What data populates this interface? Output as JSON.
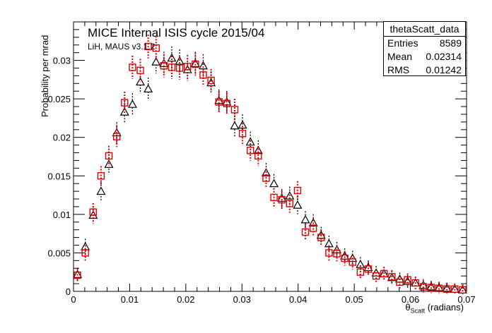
{
  "chart_data": {
    "type": "scatter",
    "title": "MICE Internal ISIS cycle 2015/04",
    "subtitle": "LiH, MAUS v3.1.2",
    "xlabel_base": "θ",
    "xlabel_sub": "Scatt",
    "xlabel_unit": " (radians)",
    "ylabel": "Probability per mrad",
    "xlim": [
      0,
      0.07
    ],
    "ylim": [
      0,
      0.035
    ],
    "xticks": [
      "0",
      "0.01",
      "0.02",
      "0.03",
      "0.04",
      "0.05",
      "0.06",
      "0.07"
    ],
    "yticks": [
      "0",
      "0.005",
      "0.01",
      "0.015",
      "0.02",
      "0.025",
      "0.03"
    ],
    "stats": {
      "title": "thetaScatt_data",
      "rows": [
        {
          "label": "Entries",
          "value": "8589"
        },
        {
          "label": "Mean",
          "value": "0.02314"
        },
        {
          "label": "RMS",
          "value": "0.01242"
        }
      ]
    },
    "series": [
      {
        "marker": "open-triangle",
        "color": "#000000",
        "x": [
          0.0007,
          0.0021,
          0.0035,
          0.0049,
          0.0063,
          0.0077,
          0.0091,
          0.0105,
          0.0119,
          0.0133,
          0.0147,
          0.0161,
          0.0175,
          0.0189,
          0.0203,
          0.0217,
          0.0231,
          0.0245,
          0.0259,
          0.0273,
          0.0287,
          0.0301,
          0.0315,
          0.0329,
          0.0343,
          0.0357,
          0.0371,
          0.0385,
          0.0399,
          0.0413,
          0.0427,
          0.0441,
          0.0455,
          0.0469,
          0.0483,
          0.0497,
          0.0511,
          0.0525,
          0.0539,
          0.0553,
          0.0567,
          0.0581,
          0.0595,
          0.0609,
          0.0623,
          0.0637,
          0.0651,
          0.0665,
          0.0679,
          0.0693
        ],
        "y": [
          0.0022,
          0.0058,
          0.0099,
          0.013,
          0.0165,
          0.0206,
          0.0233,
          0.0243,
          0.0272,
          0.0263,
          0.0298,
          0.0296,
          0.0303,
          0.0299,
          0.0288,
          0.0296,
          0.0293,
          0.0271,
          0.0248,
          0.0246,
          0.0215,
          0.0216,
          0.0194,
          0.0183,
          0.0154,
          0.014,
          0.0121,
          0.0124,
          0.0112,
          0.0093,
          0.0089,
          0.0073,
          0.0062,
          0.0054,
          0.0046,
          0.0043,
          0.0035,
          0.0031,
          0.0024,
          0.0023,
          0.0018,
          0.0016,
          0.0013,
          0.0011,
          0.0008,
          0.0006,
          0.0005,
          0.0004,
          0.0003,
          0.0002
        ]
      },
      {
        "marker": "open-square",
        "color": "#dd0000",
        "x": [
          0.0007,
          0.0021,
          0.0035,
          0.0049,
          0.0063,
          0.0077,
          0.0091,
          0.0105,
          0.0119,
          0.0133,
          0.0147,
          0.0161,
          0.0175,
          0.0189,
          0.0203,
          0.0217,
          0.0231,
          0.0245,
          0.0259,
          0.0273,
          0.0287,
          0.0301,
          0.0315,
          0.0329,
          0.0343,
          0.0357,
          0.0371,
          0.0385,
          0.0399,
          0.0413,
          0.0427,
          0.0441,
          0.0455,
          0.0469,
          0.0483,
          0.0497,
          0.0511,
          0.0525,
          0.0539,
          0.0553,
          0.0567,
          0.0581,
          0.0595,
          0.0609,
          0.0623,
          0.0637,
          0.0651,
          0.0665,
          0.0679,
          0.0693
        ],
        "y": [
          0.0021,
          0.005,
          0.0103,
          0.015,
          0.0176,
          0.0201,
          0.0245,
          0.0291,
          0.0287,
          0.0318,
          0.0316,
          0.0293,
          0.0291,
          0.029,
          0.0292,
          0.0295,
          0.0281,
          0.0274,
          0.0246,
          0.0244,
          0.0236,
          0.0205,
          0.0183,
          0.0176,
          0.0147,
          0.0122,
          0.0119,
          0.0114,
          0.0131,
          0.0077,
          0.0082,
          0.007,
          0.005,
          0.0049,
          0.0043,
          0.0038,
          0.0025,
          0.0029,
          0.002,
          0.0023,
          0.0019,
          0.0012,
          0.0015,
          0.0011,
          0.0006,
          0.0005,
          0.0004,
          0.0003,
          0.0003,
          0.0002
        ]
      }
    ]
  }
}
